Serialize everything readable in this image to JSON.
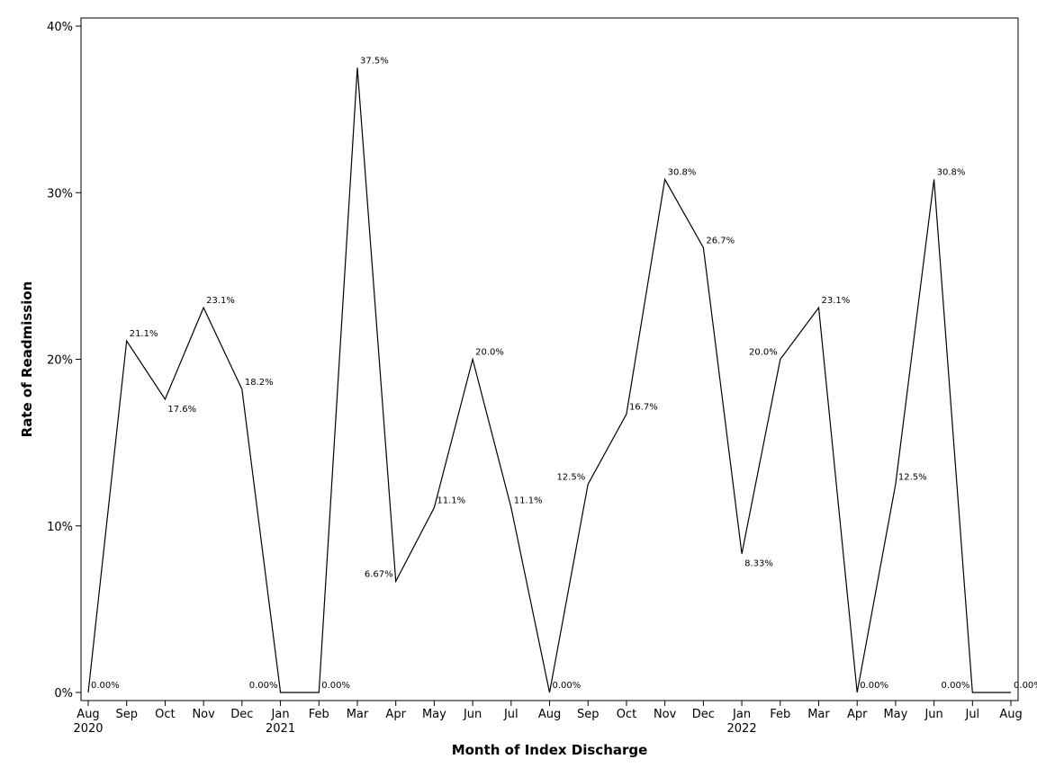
{
  "chart_data": {
    "type": "line",
    "xlabel": "Month of Index Discharge",
    "ylabel": "Rate of Readmission",
    "ylim": [
      0,
      40
    ],
    "y_ticks": [
      {
        "value": 0,
        "label": "0%"
      },
      {
        "value": 10,
        "label": "10%"
      },
      {
        "value": 20,
        "label": "20%"
      },
      {
        "value": 30,
        "label": "30%"
      },
      {
        "value": 40,
        "label": "40%"
      }
    ],
    "categories": [
      "Aug",
      "Sep",
      "Oct",
      "Nov",
      "Dec",
      "Jan",
      "Feb",
      "Mar",
      "Apr",
      "May",
      "Jun",
      "Jul",
      "Aug",
      "Sep",
      "Oct",
      "Nov",
      "Dec",
      "Jan",
      "Feb",
      "Mar",
      "Apr",
      "May",
      "Jun",
      "Jul",
      "Aug"
    ],
    "year_labels": [
      "2020",
      "",
      "",
      "",
      "",
      "2021",
      "",
      "",
      "",
      "",
      "",
      "",
      "",
      "",
      "",
      "",
      "",
      "2022",
      "",
      "",
      "",
      "",
      "",
      "",
      ""
    ],
    "values": [
      0,
      21.1,
      17.6,
      23.1,
      18.2,
      0,
      0,
      37.5,
      6.67,
      11.1,
      20.0,
      11.1,
      0,
      12.5,
      16.7,
      30.8,
      26.7,
      8.33,
      20.0,
      23.1,
      0,
      12.5,
      30.8,
      0,
      0
    ],
    "value_labels": [
      "0.00%",
      "21.1%",
      "17.6%",
      "23.1%",
      "18.2%",
      "0.00%",
      "0.00%",
      "37.5%",
      "6.67%",
      "11.1%",
      "20.0%",
      "11.1%",
      "0.00%",
      "12.5%",
      "16.7%",
      "30.8%",
      "26.7%",
      "8.33%",
      "20.0%",
      "23.1%",
      "0.00%",
      "12.5%",
      "30.8%",
      "0.00%",
      "0.00%"
    ],
    "label_sides": [
      "right",
      "right",
      "right",
      "right",
      "right",
      "left",
      "right",
      "right",
      "left",
      "right",
      "right",
      "right",
      "right",
      "left",
      "right",
      "right",
      "right",
      "right",
      "left",
      "right",
      "right",
      "right",
      "right",
      "left",
      "right"
    ],
    "label_vpos": [
      "above",
      "above",
      "below",
      "above",
      "above",
      "above",
      "above",
      "above",
      "above",
      "above",
      "above",
      "above",
      "above",
      "above",
      "above",
      "above",
      "above",
      "below",
      "above",
      "above",
      "above",
      "above",
      "above",
      "above",
      "above"
    ],
    "grid": false,
    "legend": "none",
    "line_color": "#000000"
  }
}
